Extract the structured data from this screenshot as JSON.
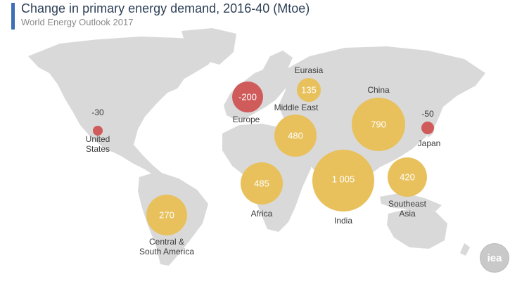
{
  "header": {
    "title": "Change in primary energy demand, 2016-40 (Mtoe)",
    "subtitle": "World Energy Outlook 2017"
  },
  "colors": {
    "increase": "#e8c15c",
    "decrease": "#cf5b5b",
    "land": "#d9d9d9",
    "title": "#2e4057",
    "accent_bar": "#3d6fb6"
  },
  "regions": [
    {
      "key": "united-states",
      "label": "United States",
      "label_lines": [
        "United",
        "States"
      ],
      "value": "-30",
      "trend": "decrease"
    },
    {
      "key": "central-south-america",
      "label": "Central & South America",
      "label_lines": [
        "Central &",
        "South America"
      ],
      "value": "270",
      "trend": "increase"
    },
    {
      "key": "europe",
      "label": "Europe",
      "label_lines": [
        "Europe"
      ],
      "value": "-200",
      "trend": "decrease"
    },
    {
      "key": "eurasia",
      "label": "Eurasia",
      "label_lines": [
        "Eurasia"
      ],
      "value": "135",
      "trend": "increase"
    },
    {
      "key": "middle-east",
      "label": "Middle East",
      "label_lines": [
        "Middle East"
      ],
      "value": "480",
      "trend": "increase"
    },
    {
      "key": "africa",
      "label": "Africa",
      "label_lines": [
        "Africa"
      ],
      "value": "485",
      "trend": "increase"
    },
    {
      "key": "china",
      "label": "China",
      "label_lines": [
        "China"
      ],
      "value": "790",
      "trend": "increase"
    },
    {
      "key": "india",
      "label": "India",
      "label_lines": [
        "India"
      ],
      "value": "1 005",
      "trend": "increase"
    },
    {
      "key": "southeast-asia",
      "label": "Southeast Asia",
      "label_lines": [
        "Southeast",
        "Asia"
      ],
      "value": "420",
      "trend": "increase"
    },
    {
      "key": "japan",
      "label": "Japan",
      "label_lines": [
        "Japan"
      ],
      "value": "-50",
      "trend": "decrease"
    }
  ],
  "logo": {
    "text": "iea"
  }
}
